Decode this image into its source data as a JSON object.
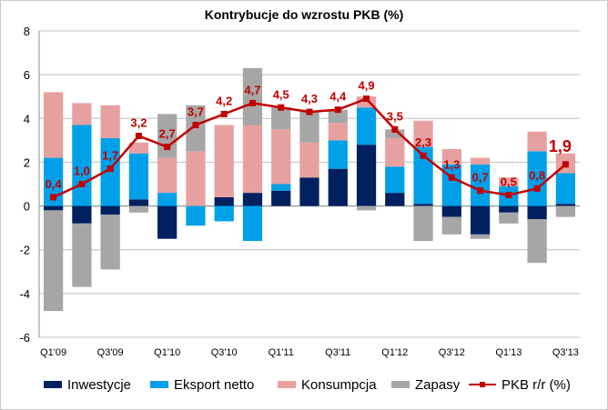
{
  "chart_data": {
    "type": "bar",
    "stacked": true,
    "title": "Kontrybucje do wzrostu PKB (%)",
    "xlabel": "",
    "ylabel": "",
    "ylim": [
      -6,
      8
    ],
    "yticks": [
      -6,
      -4,
      -2,
      0,
      2,
      4,
      6,
      8
    ],
    "grid": true,
    "legend_position": "bottom",
    "categories": [
      "Q1'09",
      "Q2'09",
      "Q3'09",
      "Q4'09",
      "Q1'10",
      "Q2'10",
      "Q3'10",
      "Q4'10",
      "Q1'11",
      "Q2'11",
      "Q3'11",
      "Q4'11",
      "Q1'12",
      "Q2'12",
      "Q3'12",
      "Q4'12",
      "Q1'13",
      "Q2'13",
      "Q3'13"
    ],
    "tick_labels": [
      "Q1'09",
      "",
      "Q3'09",
      "",
      "Q1'10",
      "",
      "Q3'10",
      "",
      "Q1'11",
      "",
      "Q3'11",
      "",
      "Q1'12",
      "",
      "Q3'12",
      "",
      "Q1'13",
      "",
      "Q3'13"
    ],
    "series": [
      {
        "name": "Inwestycje",
        "kind": "bar",
        "color": "#002060",
        "values": [
          -0.2,
          -0.8,
          -0.4,
          0.3,
          -1.5,
          0.0,
          0.4,
          0.6,
          0.7,
          1.3,
          1.7,
          2.8,
          0.6,
          0.1,
          -0.5,
          -1.3,
          -0.3,
          -0.6,
          0.1
        ]
      },
      {
        "name": "Eksport netto",
        "kind": "bar",
        "color": "#00A0E9",
        "values": [
          2.2,
          3.7,
          3.1,
          2.1,
          0.6,
          -0.9,
          -0.7,
          -1.6,
          0.3,
          0.0,
          1.3,
          1.7,
          1.2,
          2.6,
          1.9,
          1.9,
          0.9,
          2.5,
          1.4
        ]
      },
      {
        "name": "Konsumpcja",
        "kind": "bar",
        "color": "#E6A0A0",
        "values": [
          3.0,
          1.0,
          1.5,
          0.5,
          1.6,
          2.5,
          3.3,
          3.1,
          2.5,
          1.6,
          0.8,
          0.5,
          1.3,
          1.2,
          0.7,
          0.3,
          0.4,
          0.9,
          0.9
        ]
      },
      {
        "name": "Zapasy",
        "kind": "bar",
        "color": "#A6A6A6",
        "values": [
          -4.6,
          -2.9,
          -2.5,
          -0.3,
          2.0,
          2.1,
          0.0,
          2.6,
          1.0,
          1.4,
          0.6,
          -0.2,
          0.4,
          -1.6,
          -0.8,
          -0.2,
          -0.5,
          -2.0,
          -0.5
        ]
      },
      {
        "name": "PKB r/r (%)",
        "kind": "line",
        "color": "#C00000",
        "values": [
          0.4,
          1.0,
          1.7,
          3.2,
          2.7,
          3.7,
          4.2,
          4.7,
          4.5,
          4.3,
          4.4,
          4.9,
          3.5,
          2.3,
          1.3,
          0.7,
          0.5,
          0.8,
          1.9
        ],
        "labels": [
          "0,4",
          "1,0",
          "1,7",
          "3,2",
          "2,7",
          "3,7",
          "4,2",
          "4,7",
          "4,5",
          "4,3",
          "4,4",
          "4,9",
          "3,5",
          "2,3",
          "1,3",
          "0,7",
          "0,5",
          "0,8",
          "1,9"
        ]
      }
    ]
  }
}
